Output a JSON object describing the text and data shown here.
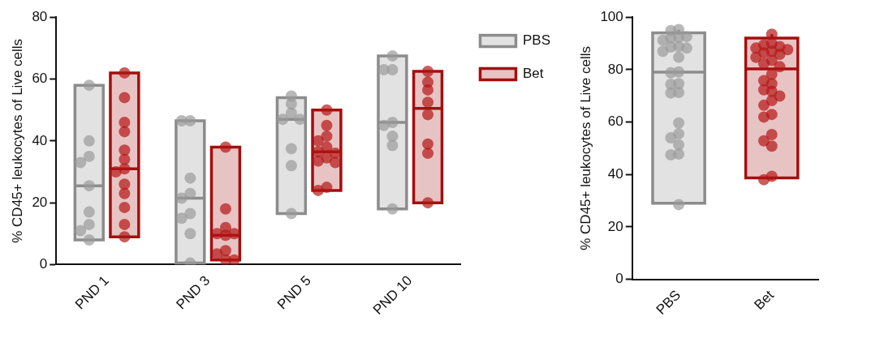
{
  "chart_data": [
    {
      "type": "box",
      "ylabel": "% CD45+ leukocytes of Live cells",
      "categories": [
        "PND 1",
        "PND 3",
        "PND 5",
        "PND 10"
      ],
      "ylim": [
        0,
        80
      ],
      "yticks": [
        0,
        20,
        40,
        60,
        80
      ],
      "grid": false,
      "legend": "right",
      "marker": "circle",
      "series": [
        {
          "name": "PBS",
          "type": "box",
          "color": "#8c8c8c",
          "boxes": [
            {
              "low": 8,
              "q1": 8,
              "median": 25.5,
              "q3": 58,
              "high": 58
            },
            {
              "low": 0.5,
              "q1": 0.5,
              "median": 21.5,
              "q3": 46.5,
              "high": 46.5
            },
            {
              "low": 16.5,
              "q1": 16.5,
              "median": 47,
              "q3": 54,
              "high": 54
            },
            {
              "low": 18,
              "q1": 18,
              "median": 46,
              "q3": 67.5,
              "high": 67.5
            }
          ]
        },
        {
          "name": "Bet",
          "type": "box",
          "color": "#a50e0e",
          "boxes": [
            {
              "low": 9,
              "q1": 9,
              "median": 31,
              "q3": 62,
              "high": 62
            },
            {
              "low": 1.5,
              "q1": 1.5,
              "median": 9.5,
              "q3": 38,
              "high": 38
            },
            {
              "low": 24,
              "q1": 24,
              "median": 36.5,
              "q3": 50,
              "high": 50
            },
            {
              "low": 20,
              "q1": 20,
              "median": 50.5,
              "q3": 62.5,
              "high": 62.5
            }
          ]
        },
        {
          "type": "scatter",
          "color": "#9a9a9a",
          "x": [
            "PND 1",
            "PND 1",
            "PND 1",
            "PND 1",
            "PND 1",
            "PND 1",
            "PND 1",
            "PND 1",
            "PND 1",
            "PND 3",
            "PND 3",
            "PND 3",
            "PND 3",
            "PND 3",
            "PND 3",
            "PND 3",
            "PND 3",
            "PND 3",
            "PND 5",
            "PND 5",
            "PND 5",
            "PND 5",
            "PND 5",
            "PND 5",
            "PND 5",
            "PND 5",
            "PND 10",
            "PND 10",
            "PND 10",
            "PND 10",
            "PND 10",
            "PND 10",
            "PND 10",
            "PND 10"
          ],
          "values": [
            58,
            40,
            35,
            33,
            25.5,
            17,
            13,
            11,
            8,
            46.5,
            46.5,
            28,
            23,
            21.5,
            16.5,
            15,
            10,
            0.5,
            54.5,
            52,
            49,
            47,
            47,
            37.5,
            32,
            16.5,
            67.5,
            63,
            63,
            46,
            45,
            41.5,
            38.5,
            18
          ]
        },
        {
          "type": "scatter",
          "color": "#b41414",
          "x": [
            "PND 1",
            "PND 1",
            "PND 1",
            "PND 1",
            "PND 1",
            "PND 1",
            "PND 1",
            "PND 1",
            "PND 1",
            "PND 1",
            "PND 1",
            "PND 1",
            "PND 1",
            "PND 3",
            "PND 3",
            "PND 3",
            "PND 3",
            "PND 3",
            "PND 3",
            "PND 3",
            "PND 3",
            "PND 3",
            "PND 3",
            "PND 5",
            "PND 5",
            "PND 5",
            "PND 5",
            "PND 5",
            "PND 5",
            "PND 5",
            "PND 5",
            "PND 5",
            "PND 5",
            "PND 5",
            "PND 5",
            "PND 10",
            "PND 10",
            "PND 10",
            "PND 10",
            "PND 10",
            "PND 10",
            "PND 10",
            "PND 10"
          ],
          "values": [
            62,
            54,
            46,
            43,
            37,
            34,
            31,
            30,
            26,
            23,
            18.5,
            13,
            9,
            38,
            18,
            12,
            10,
            10,
            9.5,
            4.5,
            3.5,
            1.5,
            1.5,
            50,
            45,
            41.5,
            40,
            38,
            36.5,
            36,
            34.5,
            33.5,
            33,
            25,
            24,
            62.5,
            59,
            56.5,
            52.5,
            48.5,
            39,
            36,
            20
          ]
        }
      ]
    },
    {
      "type": "box",
      "ylabel": "% CD45+ leukocytes of Live cells",
      "categories": [
        "PBS",
        "Bet"
      ],
      "ylim": [
        0,
        100
      ],
      "yticks": [
        0,
        20,
        40,
        60,
        80,
        100
      ],
      "grid": false,
      "marker": "circle",
      "series": [
        {
          "type": "box",
          "colors": [
            "#8c8c8c",
            "#a50e0e"
          ],
          "boxes": [
            {
              "low": 28.5,
              "q1": 29,
              "median": 79,
              "q3": 94,
              "high": 95.3
            },
            {
              "low": 38,
              "q1": 38.7,
              "median": 80.3,
              "q3": 92,
              "high": 93.5
            }
          ]
        },
        {
          "type": "scatter",
          "color": "#9a9a9a",
          "x": [
            "PBS",
            "PBS",
            "PBS",
            "PBS",
            "PBS",
            "PBS",
            "PBS",
            "PBS",
            "PBS",
            "PBS",
            "PBS",
            "PBS",
            "PBS",
            "PBS",
            "PBS",
            "PBS",
            "PBS",
            "PBS",
            "PBS",
            "PBS",
            "PBS",
            "PBS",
            "PBS",
            "PBS"
          ],
          "values": [
            95.3,
            94.9,
            92.6,
            92.3,
            92.1,
            91.2,
            88.8,
            88.6,
            88.2,
            87,
            84.7,
            79.1,
            78.8,
            74.6,
            74.4,
            71.3,
            71.1,
            59.6,
            55.5,
            54,
            51.3,
            47.8,
            47.5,
            28.5
          ]
        },
        {
          "type": "scatter",
          "color": "#b41414",
          "x": [
            "Bet",
            "Bet",
            "Bet",
            "Bet",
            "Bet",
            "Bet",
            "Bet",
            "Bet",
            "Bet",
            "Bet",
            "Bet",
            "Bet",
            "Bet",
            "Bet",
            "Bet",
            "Bet",
            "Bet",
            "Bet",
            "Bet",
            "Bet",
            "Bet",
            "Bet",
            "Bet",
            "Bet",
            "Bet",
            "Bet",
            "Bet",
            "Bet"
          ],
          "values": [
            93.5,
            90,
            89.4,
            88.8,
            88.2,
            87.6,
            87,
            86.4,
            85.8,
            84.7,
            83.5,
            82.3,
            81.1,
            78.2,
            75.8,
            74.6,
            72.3,
            71.7,
            69.9,
            68.2,
            66.4,
            62.9,
            61.9,
            55.2,
            52.8,
            50.8,
            39.3,
            38
          ]
        }
      ]
    }
  ]
}
